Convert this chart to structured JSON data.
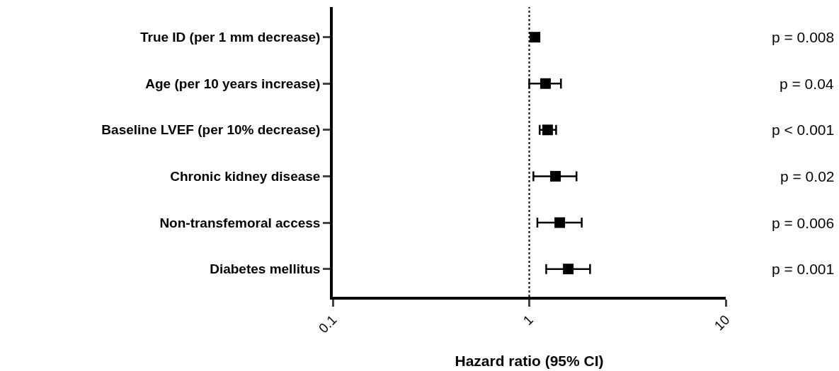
{
  "chart_data": {
    "type": "scatter",
    "orientation": "horizontal",
    "xlabel": "Hazard ratio (95% CI)",
    "categories": [
      "True ID (per 1 mm decrease)",
      "Age (per 10 years increase)",
      "Baseline LVEF (per 10% decrease)",
      "Chronic kidney disease",
      "Non-transfemoral access",
      "Diabetes mellitus"
    ],
    "series": [
      {
        "color": "#000000",
        "values": [
          1.07,
          1.21,
          1.24,
          1.36,
          1.43,
          1.58
        ],
        "errors": [
          [
            1.02,
            1.12
          ],
          [
            1.0,
            1.45
          ],
          [
            1.13,
            1.37
          ],
          [
            1.05,
            1.74
          ],
          [
            1.1,
            1.85
          ],
          [
            1.22,
            2.04
          ]
        ]
      }
    ],
    "xlim": [
      0.1,
      10
    ],
    "xticks": [
      0.1,
      1,
      10
    ],
    "log": "x",
    "grid": false,
    "marker": "square",
    "ref_lines": [
      {
        "axis": "x",
        "value": 1,
        "line_style": "dotted",
        "color": "#000000"
      }
    ],
    "annotations": [
      "p = 0.008",
      "p = 0.04",
      "p < 0.001",
      "p = 0.02",
      "p = 0.006",
      "p = 0.001"
    ]
  }
}
